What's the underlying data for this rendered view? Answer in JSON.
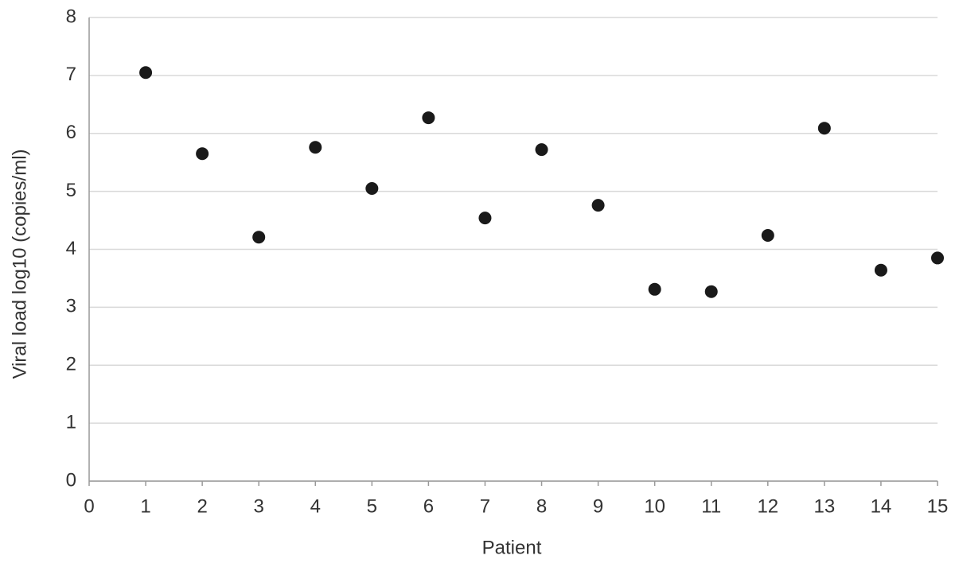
{
  "chart_data": {
    "type": "scatter",
    "x_label": "Patient",
    "y_label": "Viral load log10 (copies/ml)",
    "x": [
      1,
      2,
      3,
      4,
      5,
      6,
      7,
      8,
      9,
      10,
      11,
      12,
      13,
      14,
      15
    ],
    "values": [
      7.05,
      5.65,
      4.21,
      5.76,
      5.05,
      6.27,
      4.54,
      5.72,
      4.76,
      3.31,
      3.27,
      4.24,
      6.09,
      3.64,
      3.85
    ],
    "color": "#1a1a1a",
    "xlim": [
      0,
      15
    ],
    "xticks": [
      0,
      1,
      2,
      3,
      4,
      5,
      6,
      7,
      8,
      9,
      10,
      11,
      12,
      13,
      14,
      15
    ],
    "ylim": [
      0,
      8
    ],
    "yticks": [
      0,
      1,
      2,
      3,
      4,
      5,
      6,
      7,
      8
    ],
    "grid": true
  }
}
